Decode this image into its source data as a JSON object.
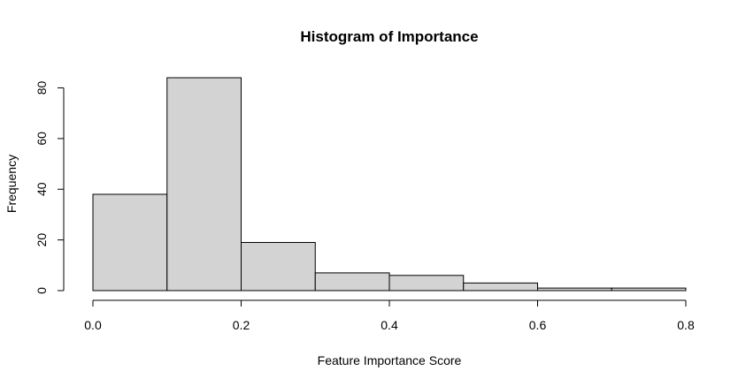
{
  "chart_data": {
    "type": "bar",
    "title": "Histogram of Importance",
    "xlabel": "Feature Importance Score",
    "ylabel": "Frequency",
    "bins": [
      {
        "start": 0.0,
        "end": 0.1,
        "count": 38
      },
      {
        "start": 0.1,
        "end": 0.2,
        "count": 84
      },
      {
        "start": 0.2,
        "end": 0.3,
        "count": 19
      },
      {
        "start": 0.3,
        "end": 0.4,
        "count": 7
      },
      {
        "start": 0.4,
        "end": 0.5,
        "count": 6
      },
      {
        "start": 0.5,
        "end": 0.6,
        "count": 3
      },
      {
        "start": 0.6,
        "end": 0.7,
        "count": 1
      },
      {
        "start": 0.7,
        "end": 0.8,
        "count": 1
      }
    ],
    "xlim": [
      0.0,
      0.8
    ],
    "ylim": [
      0,
      84
    ],
    "xticks": [
      {
        "value": 0.0,
        "label": "0.0"
      },
      {
        "value": 0.2,
        "label": "0.2"
      },
      {
        "value": 0.4,
        "label": "0.4"
      },
      {
        "value": 0.6,
        "label": "0.6"
      },
      {
        "value": 0.8,
        "label": "0.8"
      }
    ],
    "yticks": [
      {
        "value": 0,
        "label": "0"
      },
      {
        "value": 20,
        "label": "20"
      },
      {
        "value": 40,
        "label": "40"
      },
      {
        "value": 60,
        "label": "60"
      },
      {
        "value": 80,
        "label": "80"
      }
    ],
    "grid": false,
    "legend": "none",
    "colors": {
      "bar_fill": "#d3d3d3",
      "bar_stroke": "#000000",
      "text": "#000000"
    }
  }
}
